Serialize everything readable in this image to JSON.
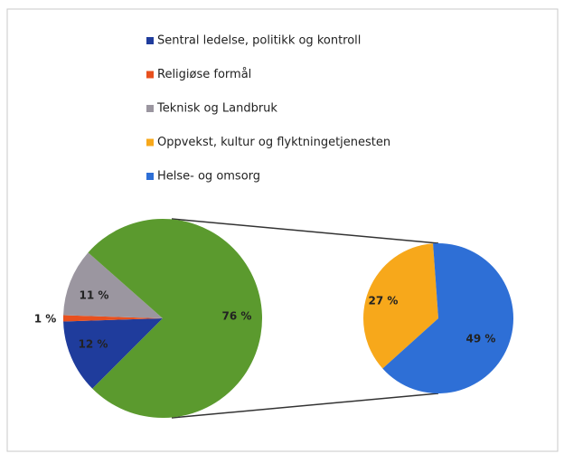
{
  "chart_data": {
    "type": "pie-of-pie",
    "primary": {
      "categories": [
        "Sentral ledelse, politikk og kontroll",
        "Religiøse formål",
        "Teknisk og Landbruk",
        null
      ],
      "values": [
        12,
        1,
        11,
        76
      ],
      "value_labels": [
        "12 %",
        "1 %",
        "11 %",
        "76 %"
      ],
      "colors": [
        "#1f3c9c",
        "#e8501e",
        "#9b96a0",
        "#5b9a2e"
      ]
    },
    "secondary": {
      "categories": [
        "Oppvekst, kultur og flyktningetjenesten",
        "Helse- og omsorg"
      ],
      "values": [
        27,
        49
      ],
      "value_labels": [
        "27 %",
        "49 %"
      ],
      "colors": [
        "#f7a81b",
        "#2e6fd6"
      ]
    }
  }
}
